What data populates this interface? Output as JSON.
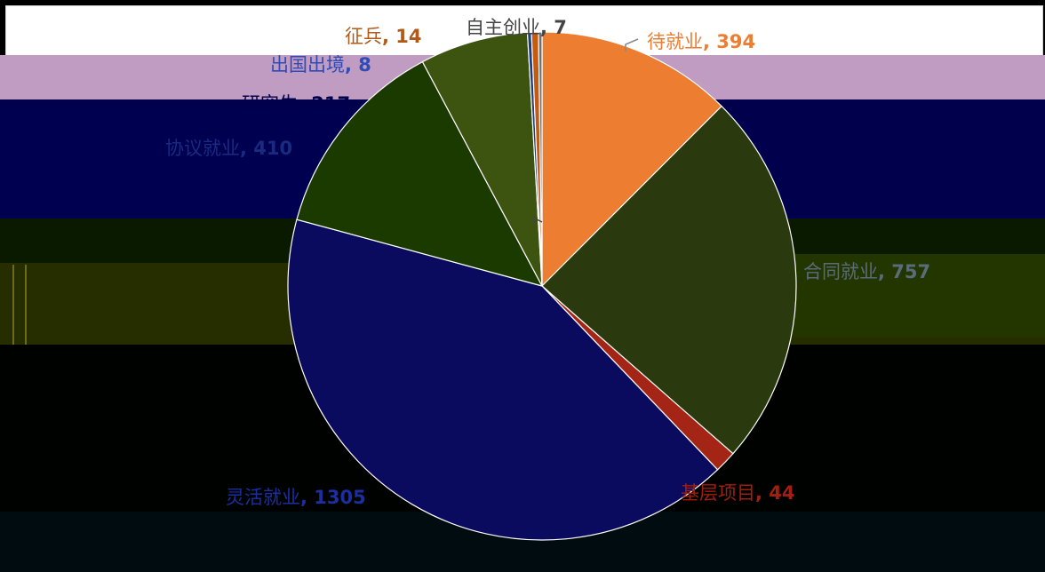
{
  "chart_data": {
    "type": "pie",
    "title": "",
    "slices": [
      {
        "label": "待就业",
        "value": 394,
        "color": "#ed7d31"
      },
      {
        "label": "合同就业",
        "value": 757,
        "color": "#2b3a0e"
      },
      {
        "label": "基层项目",
        "value": 44,
        "color": "#a42515"
      },
      {
        "label": "灵活就业",
        "value": 1305,
        "color": "#0a0a5e"
      },
      {
        "label": "协议就业",
        "value": 410,
        "color": "#1a3a00"
      },
      {
        "label": "研究生",
        "value": 217,
        "color": "#3d5410"
      },
      {
        "label": "出国出境",
        "value": 8,
        "color": "#1f3d7a"
      },
      {
        "label": "征兵",
        "value": 14,
        "color": "#c55a11"
      },
      {
        "label": "自主创业",
        "value": 7,
        "color": "#6e6e6e"
      }
    ],
    "data_labels": [
      {
        "name": "待就业",
        "value": "394",
        "sep": ", ",
        "color": "#ed7d31"
      },
      {
        "name": "合同就业",
        "value": "757",
        "sep": ", ",
        "color": "#5a6b7a"
      },
      {
        "name": "基层项目",
        "value": "44",
        "sep": ", ",
        "color": "#a01f10"
      },
      {
        "name": "灵活就业",
        "value": "1305",
        "sep": ", ",
        "color": "#1c2ea0"
      },
      {
        "name": "协议就业",
        "value": "410",
        "sep": ", ",
        "color": "#1a2a80"
      },
      {
        "name": "研究生",
        "value": "217",
        "sep": ", ",
        "color": "#00004d"
      },
      {
        "name": "出国出境",
        "value": "8",
        "sep": ", ",
        "color": "#2f4bb5"
      },
      {
        "name": "征兵",
        "value": "14",
        "sep": ", ",
        "color": "#b05a1a"
      },
      {
        "name": "自主创业",
        "value": "7",
        "sep": ", ",
        "color": "#444444"
      }
    ],
    "legend": "none",
    "grid": false
  }
}
